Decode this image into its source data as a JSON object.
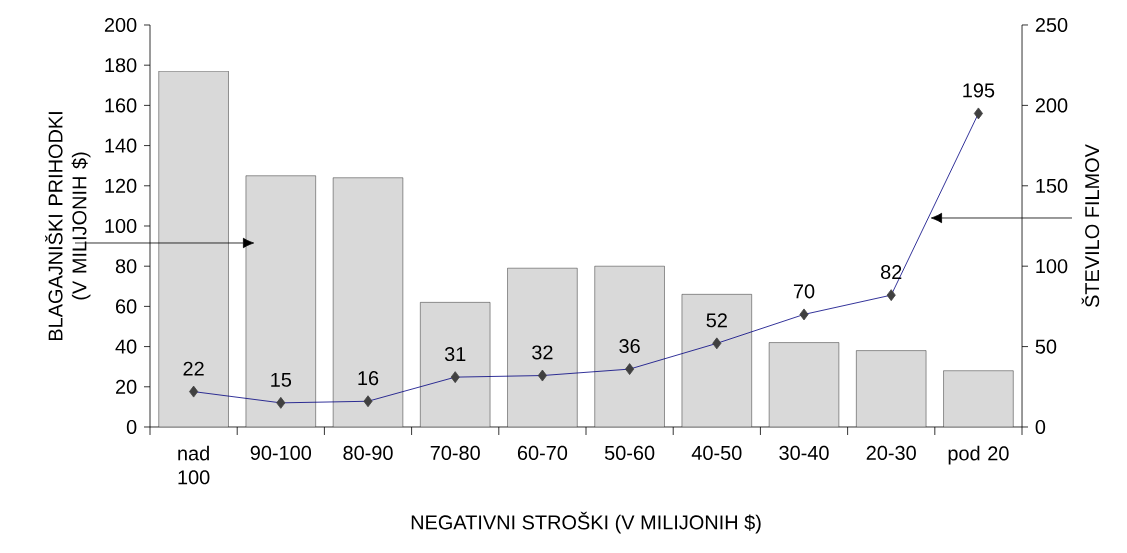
{
  "chart_data": {
    "type": "bar",
    "xlabel": "NEGATIVNI STROŠKI (V MILIJONIH $)",
    "ylabel": "BLAGAJNIŠKI PRIHODKI (V MILIJONIH $)",
    "y2label": "ŠTEVILO FILMOV",
    "categories": [
      "nad 100",
      "90-100",
      "80-90",
      "70-80",
      "60-70",
      "50-60",
      "40-50",
      "30-40",
      "20-30",
      "pod 20"
    ],
    "series": [
      {
        "color": "#d9d9d9",
        "values": [
          177,
          125,
          124,
          62,
          79,
          80,
          66,
          42,
          38,
          28
        ]
      },
      {
        "type": "line",
        "axis": "y2",
        "color": "#000080",
        "marker": "diamond",
        "values": [
          22,
          15,
          16,
          31,
          32,
          36,
          52,
          70,
          82,
          195
        ],
        "value_labels": [
          "22",
          "15",
          "16",
          "31",
          "32",
          "36",
          "52",
          "70",
          "82",
          "195"
        ]
      }
    ],
    "ylim": [
      0,
      200
    ],
    "yticks": [
      0,
      20,
      40,
      60,
      80,
      100,
      120,
      140,
      160,
      180,
      200
    ],
    "y2lim": [
      0,
      250
    ],
    "y2ticks": [
      0,
      50,
      100,
      150,
      200,
      250
    ],
    "grid": false
  }
}
